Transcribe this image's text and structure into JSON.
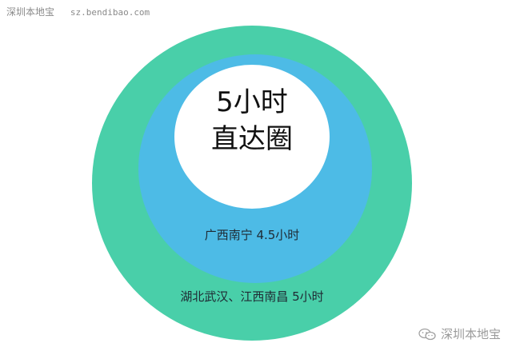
{
  "watermark_top": {
    "brand": "深圳本地宝",
    "site": "sz.bendibao.com"
  },
  "center": {
    "line1": "5小时",
    "line2": "直达圈"
  },
  "rings": {
    "middle_label": "广西南宁 4.5小时",
    "outer_label": "湖北武汉、江西南昌 5小时"
  },
  "watermark_bottom": {
    "brand": "深圳本地宝",
    "icon": "wechat-icon"
  },
  "colors": {
    "outer": "#49cfa9",
    "middle": "#4dbbe6",
    "inner": "#ffffff"
  }
}
